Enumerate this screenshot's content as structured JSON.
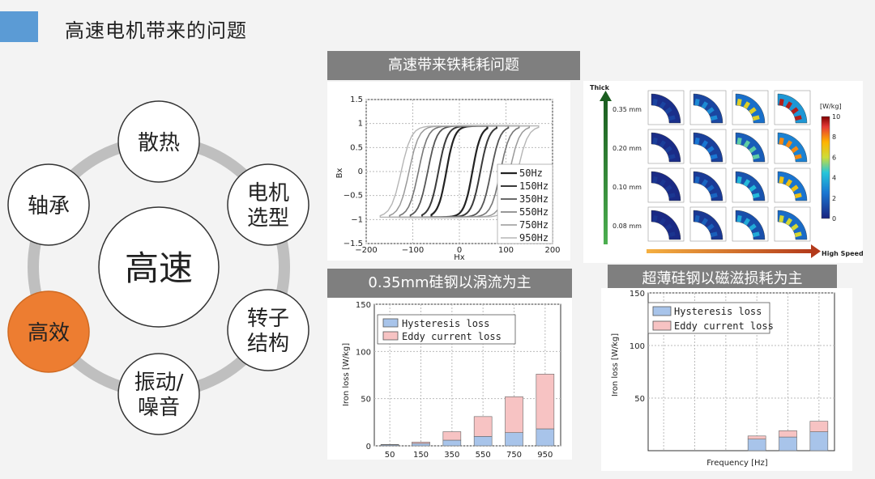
{
  "header": {
    "title": "高速电机带来的问题"
  },
  "diagram": {
    "center": "高速",
    "nodes": [
      {
        "id": "heat",
        "line1": "散热",
        "line2": ""
      },
      {
        "id": "motor",
        "line1": "电机",
        "line2": "选型"
      },
      {
        "id": "rotor",
        "line1": "转子",
        "line2": "结构"
      },
      {
        "id": "vibration",
        "line1": "振动/",
        "line2": "噪音"
      },
      {
        "id": "efficiency",
        "line1": "高效",
        "line2": ""
      },
      {
        "id": "bearing",
        "line1": "轴承",
        "line2": ""
      }
    ],
    "colors": {
      "ring": "#bfbfbf",
      "highlight": "#ed7d31",
      "circle_border": "#333333"
    }
  },
  "banners": {
    "top": "高速带来铁耗耗问题",
    "bottom_left": "0.35mm硅钢以涡流为主",
    "bottom_right": "超薄硅钢以磁滋损耗为主"
  },
  "chart_data": [
    {
      "type": "line",
      "xlabel": "Hx",
      "ylabel": "Bx",
      "xlim": [
        -200,
        200
      ],
      "ylim": [
        -1.5,
        1.5
      ],
      "xticks": [
        "−200",
        "−100",
        "0",
        "100",
        "200"
      ],
      "yticks": [
        "1.5",
        "1",
        "0.5",
        "0",
        "−0.5",
        "−1",
        "−1.5"
      ],
      "series": [
        {
          "name": "50Hz",
          "coercive": 28,
          "hmax": 60
        },
        {
          "name": "150Hz",
          "coercive": 45,
          "hmax": 80
        },
        {
          "name": "350Hz",
          "coercive": 68,
          "hmax": 105
        },
        {
          "name": "550Hz",
          "coercive": 88,
          "hmax": 128
        },
        {
          "name": "750Hz",
          "coercive": 108,
          "hmax": 150
        },
        {
          "name": "950Hz",
          "coercive": 125,
          "hmax": 170
        }
      ]
    },
    {
      "type": "heatmap",
      "yaxis_label": "Thick",
      "xaxis_label": "High Speed",
      "rows": [
        "0.35 mm",
        "0.20 mm",
        "0.10 mm",
        "0.08 mm"
      ],
      "unit": "[W/kg]",
      "scale_ticks": [
        "10",
        "8",
        "6",
        "4",
        "2",
        "0"
      ],
      "levels": [
        [
          0.1,
          0.3,
          0.65,
          0.95
        ],
        [
          0.08,
          0.25,
          0.5,
          0.8
        ],
        [
          0.06,
          0.2,
          0.42,
          0.7
        ],
        [
          0.05,
          0.18,
          0.38,
          0.62
        ]
      ]
    },
    {
      "type": "bar",
      "categories": [
        "50",
        "150",
        "350",
        "550",
        "750",
        "950"
      ],
      "series": [
        {
          "name": "Hysteresis loss",
          "values": [
            1,
            2.5,
            6,
            10,
            14,
            18
          ]
        },
        {
          "name": "Eddy current loss",
          "values": [
            0.5,
            1.5,
            9,
            21,
            38,
            58
          ]
        }
      ],
      "ylabel": "Iron loss [W/kg]",
      "ylim": [
        0,
        150
      ],
      "yticks": [
        "150",
        "100",
        "50",
        "0"
      ]
    },
    {
      "type": "bar",
      "categories": [
        "",
        "",
        "",
        "",
        "",
        ""
      ],
      "series": [
        {
          "name": "Hysteresis loss",
          "values": [
            0,
            0,
            0,
            11,
            13,
            18
          ]
        },
        {
          "name": "Eddy current loss",
          "values": [
            0,
            0,
            0,
            3,
            6,
            10
          ]
        }
      ],
      "xlabel": "Frequency [Hz]",
      "ylabel": "Iron loss [W/kg]",
      "ylim": [
        0,
        150
      ],
      "yticks": [
        "150",
        "100",
        "50"
      ]
    }
  ]
}
